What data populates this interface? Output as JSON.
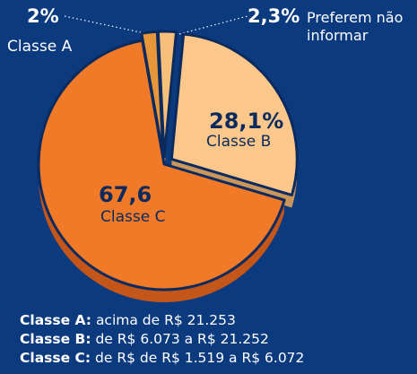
{
  "chart_data": {
    "type": "pie",
    "categories": [
      "Classe A",
      "Preferem não informar",
      "Classe B",
      "Classe C"
    ],
    "values": [
      2,
      2.3,
      28.1,
      67.6
    ],
    "value_labels": [
      "2%",
      "2,3%",
      "28,1%",
      "67,6"
    ],
    "colors": [
      "#e8963a",
      "#f6c07a",
      "#fcc78a",
      "#f07a28"
    ],
    "footnotes": [
      {
        "term": "Classe A:",
        "text": "acima de R$ 21.253"
      },
      {
        "term": "Classe B:",
        "text": "de R$ 6.073 a R$ 21.252"
      },
      {
        "term": "Classe C:",
        "text": "de R$ de R$ 1.519 a R$ 6.072"
      }
    ]
  }
}
